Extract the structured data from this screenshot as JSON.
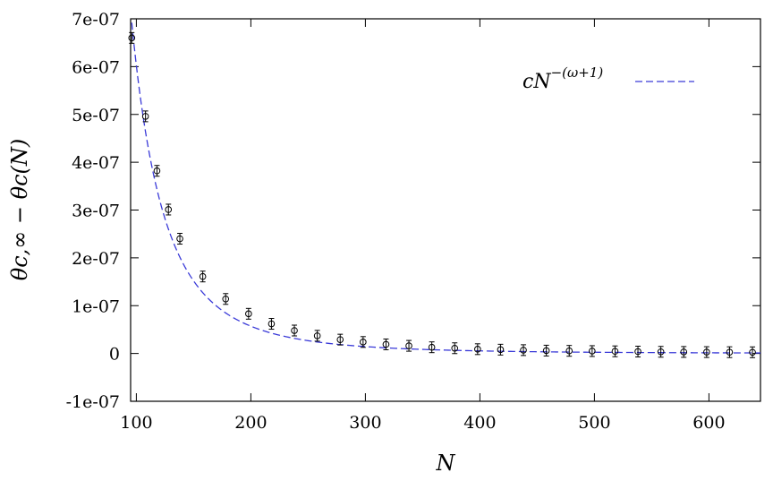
{
  "chart_data": {
    "type": "scatter",
    "xlabel": "N",
    "ylabel": "θc,∞ − θc(N)",
    "xlim": [
      95,
      645
    ],
    "ylim": [
      -1e-07,
      7e-07
    ],
    "x_ticks": [
      100,
      200,
      300,
      400,
      500,
      600
    ],
    "x_tick_labels": [
      "100",
      "200",
      "300",
      "400",
      "500",
      "600"
    ],
    "y_ticks": [
      -1e-07,
      0,
      1e-07,
      2e-07,
      3e-07,
      4e-07,
      5e-07,
      6e-07,
      7e-07
    ],
    "y_tick_labels": [
      "-1e-07",
      "0",
      "1e-07",
      "2e-07",
      "3e-07",
      "4e-07",
      "5e-07",
      "6e-07",
      "7e-07"
    ],
    "grid": false,
    "legend_position": "top-right",
    "series": [
      {
        "type": "scatter",
        "marker": "circle-with-errorbar",
        "color": "#000000",
        "x": [
          96,
          108,
          118,
          128,
          138,
          158,
          178,
          198,
          218,
          238,
          258,
          278,
          298,
          318,
          338,
          358,
          378,
          398,
          418,
          438,
          458,
          478,
          498,
          518,
          538,
          558,
          578,
          598,
          618,
          638
        ],
        "y": [
          6.6e-07,
          4.96e-07,
          3.82e-07,
          3.01e-07,
          2.4e-07,
          1.61e-07,
          1.14e-07,
          8.3e-08,
          6.2e-08,
          4.8e-08,
          3.7e-08,
          2.9e-08,
          2.4e-08,
          1.9e-08,
          1.6e-08,
          1.3e-08,
          1.1e-08,
          9e-09,
          8e-09,
          7e-09,
          6e-09,
          5.5e-09,
          5e-09,
          4.5e-09,
          4e-09,
          3.5e-09,
          3.2e-09,
          2.9e-09,
          2.7e-09,
          2.5e-09
        ]
      },
      {
        "type": "line",
        "name": "cN^-(ω+1)",
        "style": "dashed",
        "color": "#3a3ad8",
        "fit": {
          "c": 3.8,
          "exponent": -3.4
        },
        "x_range": [
          96,
          645
        ]
      }
    ],
    "legend": {
      "text_base": "cN",
      "text_sup": "−(ω+1)"
    }
  }
}
